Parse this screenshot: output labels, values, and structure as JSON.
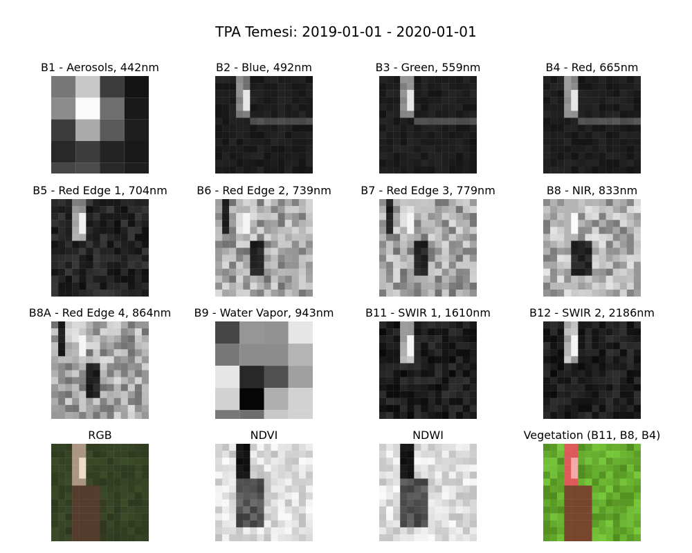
{
  "figure": {
    "title": "TPA Temesi: 2019-01-01 - 2020-01-01"
  },
  "panels": [
    {
      "label": "B1 - Aerosols, 442nm",
      "kind": "b1"
    },
    {
      "label": "B2 - Blue, 492nm",
      "kind": "vis"
    },
    {
      "label": "B3 - Green, 559nm",
      "kind": "vis"
    },
    {
      "label": "B4 - Red, 665nm",
      "kind": "vis"
    },
    {
      "label": "B5 - Red Edge 1, 704nm",
      "kind": "re1"
    },
    {
      "label": "B6 - Red Edge 2, 739nm",
      "kind": "re2"
    },
    {
      "label": "B7 - Red Edge 3, 779nm",
      "kind": "re2"
    },
    {
      "label": "B8 - NIR, 833nm",
      "kind": "nir"
    },
    {
      "label": "B8A - Red Edge 4, 864nm",
      "kind": "re2"
    },
    {
      "label": "B9 - Water Vapor, 943nm",
      "kind": "b9"
    },
    {
      "label": "B11 - SWIR 1, 1610nm",
      "kind": "swir"
    },
    {
      "label": "B12 - SWIR 2, 2186nm",
      "kind": "swir"
    },
    {
      "label": "RGB",
      "kind": "rgb"
    },
    {
      "label": "NDVI",
      "kind": "ndvi"
    },
    {
      "label": "NDWI",
      "kind": "ndvi"
    },
    {
      "label": "Vegetation (B11, B8, B4)",
      "kind": "veg"
    }
  ]
}
